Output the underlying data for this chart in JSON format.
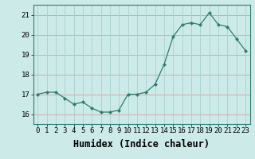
{
  "x": [
    0,
    1,
    2,
    3,
    4,
    5,
    6,
    7,
    8,
    9,
    10,
    11,
    12,
    13,
    14,
    15,
    16,
    17,
    18,
    19,
    20,
    21,
    22,
    23
  ],
  "y": [
    17.0,
    17.1,
    17.1,
    16.8,
    16.5,
    16.6,
    16.3,
    16.1,
    16.1,
    16.2,
    17.0,
    17.0,
    17.1,
    17.5,
    18.5,
    19.9,
    20.5,
    20.6,
    20.5,
    21.1,
    20.5,
    20.4,
    19.8,
    19.2
  ],
  "xlabel": "Humidex (Indice chaleur)",
  "ylim": [
    15.5,
    21.5
  ],
  "xlim": [
    -0.5,
    23.5
  ],
  "yticks": [
    16,
    17,
    18,
    19,
    20,
    21
  ],
  "xticks": [
    0,
    1,
    2,
    3,
    4,
    5,
    6,
    7,
    8,
    9,
    10,
    11,
    12,
    13,
    14,
    15,
    16,
    17,
    18,
    19,
    20,
    21,
    22,
    23
  ],
  "line_color": "#2d7d6e",
  "marker_color": "#2d7d6e",
  "bg_color": "#cceae8",
  "grid_color_h": "#d4a0a0",
  "grid_color_v": "#a8d0cc",
  "axis_color": "#2d7d6e",
  "tick_label_fontsize": 6.5,
  "xlabel_fontsize": 8.5
}
